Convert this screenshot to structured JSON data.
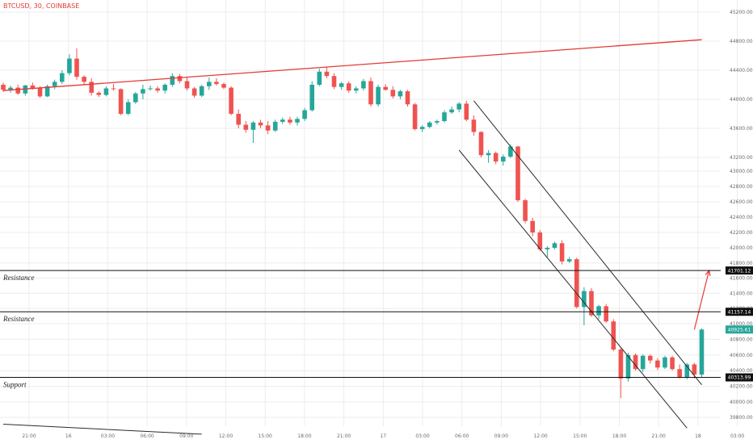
{
  "symbol_label": "BTCUSD, 30, COINBASE",
  "colors": {
    "up": "#26a69a",
    "down": "#ef5350",
    "trendline": "#e53935",
    "channel": "#2b2b2b",
    "level_line": "#111111",
    "grid": "#ececec",
    "last_price_tag": "#26a69a"
  },
  "chart_data": {
    "type": "candlestick",
    "symbol": "BTCUSD",
    "timeframe": "30",
    "exchange": "COINBASE",
    "y_axis": {
      "ticks": [
        "45200.00",
        "44800.00",
        "44400.00",
        "44000.00",
        "43600.00",
        "43200.00",
        "43000.00",
        "42800.00",
        "42600.00",
        "42400.00",
        "42200.00",
        "42000.00",
        "41800.00",
        "41600.00",
        "41400.00",
        "41200.00",
        "41000.00",
        "40800.00",
        "40600.00",
        "40400.00",
        "40200.00",
        "40000.00",
        "39800.00"
      ]
    },
    "x_axis": {
      "ticks": [
        "21:00",
        "16",
        "03:00",
        "06:00",
        "09:00",
        "12:00",
        "15:00",
        "18:00",
        "21:00",
        "17",
        "03:00",
        "06:00",
        "09:00",
        "12:00",
        "15:00",
        "18:00",
        "21:00",
        "18",
        "03:00"
      ]
    },
    "price_labels": [
      "41701.12",
      "41157.14",
      "40925.61",
      "40313.99"
    ],
    "levels": [
      {
        "label": "Resistance",
        "price": 41701.12
      },
      {
        "label": "Resistance",
        "price": 41157.14
      },
      {
        "label": "Support",
        "price": 40313.99
      }
    ],
    "last_price": 40925.61,
    "trendlines": [
      {
        "name": "rising resistance",
        "from": {
          "bar": 0,
          "price": 44120
        },
        "to": {
          "bar": 95,
          "price": 44820
        }
      },
      {
        "name": "channel upper",
        "from": {
          "bar": 64,
          "price": 43980
        },
        "to": {
          "bar": 95,
          "price": 40220
        }
      },
      {
        "name": "channel lower",
        "from": {
          "bar": 62,
          "price": 43300
        },
        "to": {
          "bar": 93,
          "price": 39660
        }
      },
      {
        "name": "lower-left line",
        "from": {
          "bar": 0,
          "price": 39710
        },
        "to": {
          "bar": 27,
          "price": 39580
        }
      }
    ],
    "projection": {
      "from": {
        "bar": 94,
        "price": 40925
      },
      "to": {
        "bar": 96,
        "price": 41701
      }
    },
    "candles": [
      [
        44200,
        44230,
        44100,
        44130
      ],
      [
        44130,
        44190,
        44090,
        44160
      ],
      [
        44160,
        44200,
        44060,
        44080
      ],
      [
        44080,
        44200,
        44050,
        44190
      ],
      [
        44190,
        44230,
        44130,
        44150
      ],
      [
        44150,
        44180,
        44020,
        44040
      ],
      [
        44040,
        44200,
        44030,
        44180
      ],
      [
        44180,
        44270,
        44140,
        44240
      ],
      [
        44240,
        44400,
        44210,
        44360
      ],
      [
        44360,
        44620,
        44330,
        44560
      ],
      [
        44560,
        44700,
        44270,
        44310
      ],
      [
        44310,
        44330,
        44190,
        44240
      ],
      [
        44240,
        44290,
        44050,
        44090
      ],
      [
        44090,
        44110,
        44030,
        44060
      ],
      [
        44060,
        44180,
        44040,
        44150
      ],
      [
        44150,
        44210,
        44120,
        44140
      ],
      [
        44140,
        44150,
        43780,
        43800
      ],
      [
        43800,
        44000,
        43780,
        43960
      ],
      [
        43960,
        44100,
        43940,
        44080
      ],
      [
        44080,
        44200,
        44000,
        44140
      ],
      [
        44140,
        44190,
        44120,
        44150
      ],
      [
        44150,
        44180,
        44090,
        44120
      ],
      [
        44120,
        44220,
        44080,
        44200
      ],
      [
        44200,
        44360,
        44170,
        44320
      ],
      [
        44320,
        44350,
        44220,
        44250
      ],
      [
        44250,
        44300,
        44120,
        44150
      ],
      [
        44150,
        44170,
        44020,
        44050
      ],
      [
        44050,
        44200,
        44030,
        44180
      ],
      [
        44180,
        44300,
        44130,
        44240
      ],
      [
        44240,
        44290,
        44190,
        44210
      ],
      [
        44210,
        44230,
        44140,
        44160
      ],
      [
        44160,
        44180,
        43780,
        43800
      ],
      [
        43800,
        43860,
        43600,
        43650
      ],
      [
        43650,
        43700,
        43540,
        43580
      ],
      [
        43580,
        43700,
        43400,
        43680
      ],
      [
        43680,
        43720,
        43600,
        43640
      ],
      [
        43640,
        43700,
        43520,
        43570
      ],
      [
        43570,
        43720,
        43550,
        43690
      ],
      [
        43690,
        43750,
        43660,
        43720
      ],
      [
        43720,
        43760,
        43650,
        43680
      ],
      [
        43680,
        43760,
        43640,
        43730
      ],
      [
        43730,
        43880,
        43700,
        43850
      ],
      [
        43850,
        44250,
        43830,
        44200
      ],
      [
        44200,
        44420,
        44180,
        44380
      ],
      [
        44380,
        44450,
        44290,
        44320
      ],
      [
        44320,
        44360,
        44140,
        44170
      ],
      [
        44170,
        44240,
        44130,
        44220
      ],
      [
        44220,
        44250,
        44090,
        44120
      ],
      [
        44120,
        44180,
        44080,
        44150
      ],
      [
        44150,
        44280,
        44120,
        44250
      ],
      [
        44250,
        44300,
        43900,
        43930
      ],
      [
        43930,
        44200,
        43900,
        44170
      ],
      [
        44170,
        44210,
        44120,
        44130
      ],
      [
        44130,
        44180,
        44010,
        44040
      ],
      [
        44040,
        44130,
        44000,
        44110
      ],
      [
        44110,
        44130,
        43900,
        43930
      ],
      [
        43930,
        43950,
        43570,
        43590
      ],
      [
        43590,
        43640,
        43550,
        43620
      ],
      [
        43620,
        43700,
        43600,
        43680
      ],
      [
        43680,
        43720,
        43650,
        43700
      ],
      [
        43700,
        43850,
        43680,
        43820
      ],
      [
        43820,
        43900,
        43800,
        43860
      ],
      [
        43860,
        43960,
        43820,
        43940
      ],
      [
        43940,
        43980,
        43700,
        43720
      ],
      [
        43720,
        43780,
        43500,
        43550
      ],
      [
        43550,
        43560,
        43200,
        43230
      ],
      [
        43230,
        43300,
        43120,
        43260
      ],
      [
        43260,
        43280,
        43100,
        43140
      ],
      [
        43140,
        43240,
        43080,
        43210
      ],
      [
        43210,
        43380,
        43190,
        43350
      ],
      [
        43350,
        43360,
        42600,
        42620
      ],
      [
        42620,
        42640,
        42320,
        42350
      ],
      [
        42350,
        42390,
        42150,
        42200
      ],
      [
        42200,
        42230,
        41960,
        41980
      ],
      [
        41980,
        42020,
        41880,
        42000
      ],
      [
        42000,
        42080,
        41980,
        42060
      ],
      [
        42060,
        42100,
        41780,
        41820
      ],
      [
        41820,
        41880,
        41800,
        41850
      ],
      [
        41850,
        41870,
        41200,
        41220
      ],
      [
        41220,
        41480,
        40980,
        41430
      ],
      [
        41430,
        41470,
        41090,
        41110
      ],
      [
        41110,
        41250,
        41060,
        41230
      ],
      [
        41230,
        41260,
        41010,
        41030
      ],
      [
        41030,
        41060,
        40650,
        40670
      ],
      [
        40670,
        40690,
        40050,
        40300
      ],
      [
        40300,
        40630,
        40260,
        40600
      ],
      [
        40600,
        40620,
        40400,
        40420
      ],
      [
        40420,
        40610,
        40380,
        40590
      ],
      [
        40590,
        40610,
        40490,
        40530
      ],
      [
        40530,
        40560,
        40410,
        40440
      ],
      [
        40440,
        40590,
        40420,
        40570
      ],
      [
        40570,
        40590,
        40400,
        40420
      ],
      [
        40420,
        40480,
        40300,
        40310
      ],
      [
        40310,
        40500,
        40290,
        40480
      ],
      [
        40480,
        40500,
        40300,
        40350
      ],
      [
        40350,
        40940,
        40320,
        40925
      ]
    ]
  }
}
